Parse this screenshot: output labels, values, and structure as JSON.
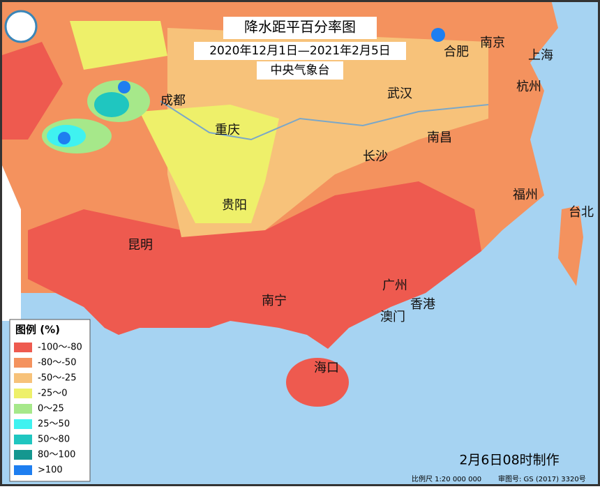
{
  "header": {
    "title": "降水距平百分率图",
    "period": "2020年12月1日—2021年2月5日",
    "issuer": "中央气象台"
  },
  "legend": {
    "title": "图例 (%)",
    "items": [
      {
        "label": "-100～-80",
        "color": "#ee5a4f"
      },
      {
        "label": "-80～-50",
        "color": "#f4925e"
      },
      {
        "label": "-50～-25",
        "color": "#f7c27a"
      },
      {
        "label": "-25～0",
        "color": "#eef06a"
      },
      {
        "label": "0～25",
        "color": "#a6e88a"
      },
      {
        "label": "25～50",
        "color": "#3ff2f0"
      },
      {
        "label": "50～80",
        "color": "#1fc6c0"
      },
      {
        "label": "80～100",
        "color": "#14978f"
      },
      {
        "label": ">100",
        "color": "#1e7ef0"
      }
    ]
  },
  "cities": [
    "成都",
    "重庆",
    "贵阳",
    "昆明",
    "南宁",
    "广州",
    "香港",
    "澳门",
    "海口",
    "长沙",
    "南昌",
    "福州",
    "武汉",
    "合肥",
    "南京",
    "上海",
    "杭州",
    "台北"
  ],
  "footer": {
    "made": "2月6日08时制作",
    "scale": "比例尺 1:20 000 000",
    "approval": "审图号: GS (2017) 3320号"
  }
}
